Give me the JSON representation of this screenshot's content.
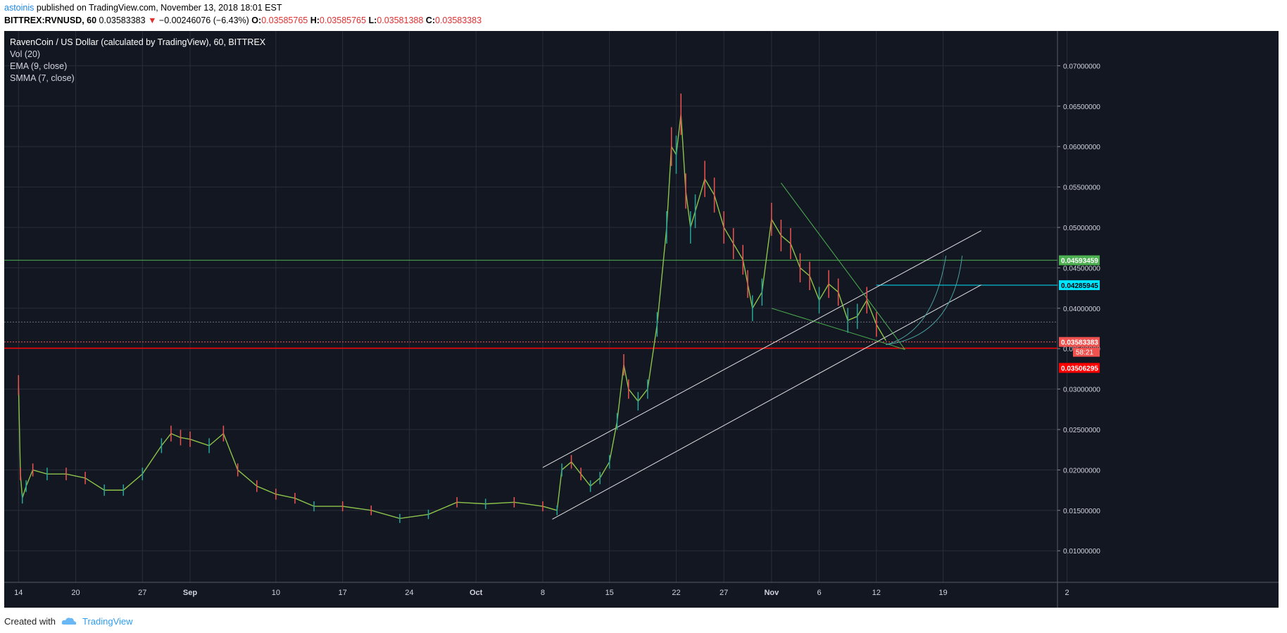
{
  "header": {
    "author": "astoinis",
    "published_text": "published on TradingView.com, November 13, 2018 18:01 EST",
    "symbol": "BITTREX:RVNUSD, 60",
    "last": "0.03583383",
    "arrow": "▼",
    "change": "−0.00246076 (−6.43%)",
    "o_label": "O:",
    "o_value": "0.03585765",
    "h_label": "H:",
    "h_value": "0.03585765",
    "l_label": "L:",
    "l_value": "0.03581388",
    "c_label": "C:",
    "c_value": "0.03583383"
  },
  "legend": {
    "title": "RavenCoin / US Dollar (calculated by TradingView), 60, BITTREX",
    "vol": "Vol (20)",
    "ema": "EMA (9, close)",
    "smma": "SMMA (7, close)"
  },
  "footer": {
    "created_with": "Created with",
    "brand": "TradingView",
    "logo_icon": "tradingview-cloud-icon"
  },
  "colors": {
    "background": "#131722",
    "grid": "#2a2e39",
    "text": "#d1d4dc",
    "price_up": "#26a69a",
    "price_down": "#ef5350",
    "ema": "#8bc34a",
    "smma": "#e57373",
    "resistance_green": "#4caf50",
    "target_cyan": "#00e5ff",
    "support_red": "#ff0000",
    "trend_white": "#e0e0e0"
  },
  "chart_data": {
    "type": "line",
    "title": "RavenCoin / US Dollar (calculated by TradingView), 60, BITTREX",
    "xlabel": "",
    "ylabel": "",
    "grid": true,
    "x_ticks": [
      "14",
      "20",
      "27",
      "Sep",
      "10",
      "17",
      "24",
      "Oct",
      "8",
      "15",
      "22",
      "27",
      "Nov",
      "6",
      "12",
      "19",
      "2"
    ],
    "x_tick_days": [
      -18,
      -12,
      -5,
      0,
      9,
      16,
      23,
      30,
      37,
      44,
      51,
      56,
      61,
      66,
      72,
      79,
      92
    ],
    "x_range_days": [
      -19.5,
      91
    ],
    "y_ticks": [
      "0.07000000",
      "0.06500000",
      "0.06000000",
      "0.05500000",
      "0.05000000",
      "0.04500000",
      "0.04000000",
      "0.03500000",
      "0.03000000",
      "0.02500000",
      "0.02000000",
      "0.01500000",
      "0.01000000"
    ],
    "ylim": [
      0.0061,
      0.0743
    ],
    "series": [
      {
        "values_day": [
          -18,
          -17.8,
          -17.6,
          -17.2,
          -16.5,
          -15,
          -13,
          -11,
          -9,
          -7,
          -5,
          -3,
          -2,
          -1,
          0,
          2,
          3.5,
          5,
          7,
          9,
          11,
          13,
          16,
          19,
          22,
          25,
          28,
          31,
          34,
          37,
          38.5,
          39,
          40,
          41,
          42,
          43,
          44,
          44.8,
          45.5,
          46,
          47,
          48,
          49,
          50,
          50.5,
          51,
          51.5,
          52,
          52.5,
          53,
          54,
          55,
          56,
          57,
          58,
          58.5,
          59,
          60,
          61,
          62,
          63,
          64,
          65,
          66,
          67,
          68,
          69,
          70,
          71,
          72,
          73
        ],
        "values_price": [
          0.0305,
          0.0195,
          0.0165,
          0.018,
          0.02,
          0.0195,
          0.0195,
          0.019,
          0.0175,
          0.0175,
          0.0195,
          0.023,
          0.0245,
          0.024,
          0.0238,
          0.023,
          0.0245,
          0.02,
          0.018,
          0.017,
          0.0165,
          0.0155,
          0.0155,
          0.015,
          0.014,
          0.0145,
          0.016,
          0.0158,
          0.016,
          0.0155,
          0.015,
          0.02,
          0.021,
          0.0195,
          0.018,
          0.019,
          0.021,
          0.026,
          0.033,
          0.03,
          0.0285,
          0.03,
          0.038,
          0.05,
          0.06,
          0.059,
          0.064,
          0.0545,
          0.05,
          0.052,
          0.056,
          0.054,
          0.05,
          0.048,
          0.046,
          0.043,
          0.04,
          0.042,
          0.051,
          0.049,
          0.048,
          0.045,
          0.044,
          0.041,
          0.043,
          0.042,
          0.0385,
          0.039,
          0.041,
          0.038,
          0.036
        ]
      }
    ],
    "horizontal_levels": [
      {
        "price": 0.04593459,
        "label": "0.04593459",
        "color": "#4caf50"
      },
      {
        "price": 0.04285945,
        "label": "0.04285945",
        "color": "#00e5ff"
      },
      {
        "price": 0.03583383,
        "label": "0.03583383",
        "color": "#ef5350"
      },
      {
        "price": 0.03506295,
        "label": "0.03506295",
        "color": "#ff0000"
      }
    ],
    "countdown": "58:21",
    "trendlines": [
      {
        "color": "#e0e0e0",
        "from": [
          37,
          0.0203
        ],
        "to": [
          83,
          0.0496
        ]
      },
      {
        "color": "#e0e0e0",
        "from": [
          38,
          0.0139
        ],
        "to": [
          83,
          0.0429
        ]
      },
      {
        "color": "#4caf50",
        "from": [
          62,
          0.0555
        ],
        "to": [
          75,
          0.0349
        ]
      },
      {
        "color": "#4caf50",
        "from": [
          61,
          0.04
        ],
        "to": [
          75,
          0.0349
        ]
      }
    ]
  }
}
